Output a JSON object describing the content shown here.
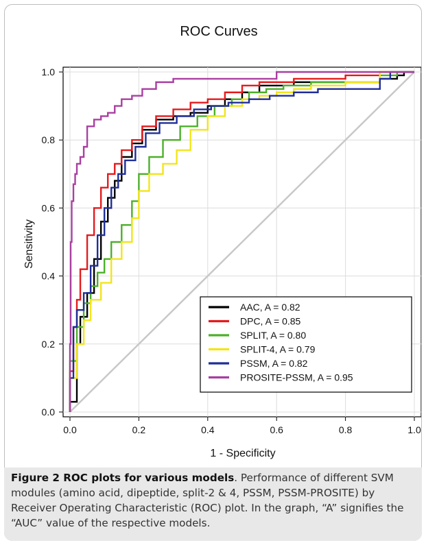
{
  "chart_data": {
    "type": "line",
    "title": "ROC Curves",
    "xlabel": "1 - Specificity",
    "ylabel": "Sensitivity",
    "xlim": [
      0,
      1
    ],
    "ylim": [
      0,
      1
    ],
    "xticks": [
      "0.0",
      "0.2",
      "0.4",
      "0.6",
      "0.8",
      "1.0"
    ],
    "yticks": [
      "0.0",
      "0.2",
      "0.4",
      "0.6",
      "0.8",
      "1.0"
    ],
    "grid": true,
    "legend_position": "bottom-right",
    "diagonal_reference": true,
    "diagonal_color": "#c8c8c8",
    "series": [
      {
        "name": "AAC, A = 0.82",
        "color": "#000000",
        "x": [
          0.0,
          0.02,
          0.03,
          0.05,
          0.07,
          0.09,
          0.11,
          0.13,
          0.15,
          0.18,
          0.21,
          0.25,
          0.3,
          0.35,
          0.4,
          0.45,
          0.5,
          0.55,
          0.6,
          0.65,
          0.7,
          0.8,
          0.9,
          0.95,
          0.97,
          1.0
        ],
        "y": [
          0.0,
          0.03,
          0.2,
          0.28,
          0.35,
          0.45,
          0.56,
          0.63,
          0.68,
          0.75,
          0.79,
          0.83,
          0.86,
          0.87,
          0.88,
          0.9,
          0.92,
          0.94,
          0.96,
          0.96,
          0.97,
          0.97,
          0.97,
          0.98,
          0.99,
          1.0
        ]
      },
      {
        "name": "DPC, A = 0.85",
        "color": "#e41a1c",
        "x": [
          0.0,
          0.01,
          0.02,
          0.03,
          0.05,
          0.07,
          0.09,
          0.11,
          0.13,
          0.15,
          0.18,
          0.21,
          0.25,
          0.3,
          0.35,
          0.4,
          0.45,
          0.5,
          0.55,
          0.6,
          0.65,
          0.7,
          0.8,
          0.9,
          1.0
        ],
        "y": [
          0.0,
          0.12,
          0.25,
          0.33,
          0.42,
          0.52,
          0.6,
          0.66,
          0.7,
          0.73,
          0.77,
          0.8,
          0.84,
          0.87,
          0.89,
          0.91,
          0.92,
          0.94,
          0.96,
          0.97,
          0.97,
          0.98,
          0.98,
          0.99,
          1.0
        ]
      },
      {
        "name": "SPLIT, A = 0.80",
        "color": "#4daf2a",
        "x": [
          0.0,
          0.02,
          0.04,
          0.06,
          0.08,
          0.1,
          0.12,
          0.15,
          0.18,
          0.2,
          0.23,
          0.27,
          0.32,
          0.37,
          0.42,
          0.47,
          0.52,
          0.57,
          0.62,
          0.7,
          0.8,
          0.9,
          0.95,
          1.0
        ],
        "y": [
          0.0,
          0.15,
          0.25,
          0.32,
          0.37,
          0.41,
          0.45,
          0.5,
          0.55,
          0.62,
          0.7,
          0.75,
          0.8,
          0.84,
          0.87,
          0.9,
          0.92,
          0.94,
          0.95,
          0.96,
          0.97,
          0.97,
          0.99,
          1.0
        ]
      },
      {
        "name": "SPLIT-4, A = 0.79",
        "color": "#f2e51a",
        "x": [
          0.0,
          0.02,
          0.04,
          0.06,
          0.09,
          0.12,
          0.15,
          0.18,
          0.2,
          0.23,
          0.27,
          0.31,
          0.35,
          0.4,
          0.45,
          0.5,
          0.55,
          0.6,
          0.65,
          0.7,
          0.8,
          0.9,
          1.0
        ],
        "y": [
          0.0,
          0.1,
          0.2,
          0.27,
          0.33,
          0.38,
          0.45,
          0.5,
          0.57,
          0.65,
          0.7,
          0.73,
          0.77,
          0.83,
          0.87,
          0.9,
          0.92,
          0.93,
          0.94,
          0.95,
          0.96,
          0.97,
          1.0
        ]
      },
      {
        "name": "PSSM, A = 0.82",
        "color": "#1f2e99",
        "x": [
          0.0,
          0.01,
          0.02,
          0.04,
          0.06,
          0.08,
          0.1,
          0.12,
          0.14,
          0.16,
          0.19,
          0.22,
          0.26,
          0.31,
          0.36,
          0.41,
          0.46,
          0.52,
          0.58,
          0.65,
          0.72,
          0.8,
          0.9,
          0.93,
          1.0
        ],
        "y": [
          0.0,
          0.1,
          0.25,
          0.3,
          0.35,
          0.43,
          0.52,
          0.6,
          0.66,
          0.7,
          0.74,
          0.78,
          0.82,
          0.85,
          0.87,
          0.89,
          0.9,
          0.91,
          0.92,
          0.93,
          0.94,
          0.95,
          0.95,
          0.98,
          1.0
        ]
      },
      {
        "name": "PROSITE-PSSM, A = 0.95",
        "color": "#a93fa0",
        "x": [
          0.0,
          0.002,
          0.005,
          0.01,
          0.015,
          0.02,
          0.03,
          0.04,
          0.05,
          0.07,
          0.09,
          0.11,
          0.13,
          0.15,
          0.18,
          0.21,
          0.25,
          0.3,
          0.35,
          0.4,
          0.45,
          0.5,
          0.6,
          1.0
        ],
        "y": [
          0.0,
          0.2,
          0.5,
          0.62,
          0.67,
          0.7,
          0.73,
          0.75,
          0.78,
          0.84,
          0.86,
          0.87,
          0.88,
          0.9,
          0.92,
          0.93,
          0.95,
          0.97,
          0.98,
          0.98,
          0.98,
          0.98,
          0.98,
          1.0
        ]
      }
    ]
  },
  "caption": {
    "label": "Figure 2 ROC plots for various models",
    "text": ". Performance of different SVM modules (amino acid, dipeptide, split-2 & 4, PSSM, PSSM-PROSITE) by Receiver Operating Characteristic (ROC) plot. In the graph, “A” signifies the “AUC” value of the respective models."
  }
}
